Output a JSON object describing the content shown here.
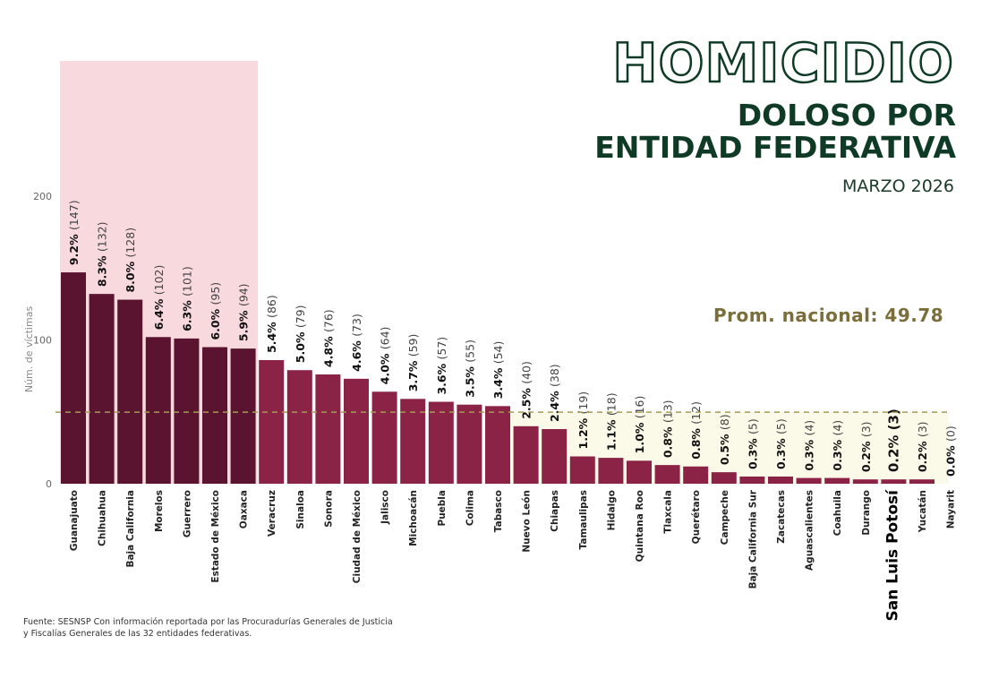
{
  "header": {
    "title_line1": "HOMICIDIO",
    "title_line2": "DOLOSO POR",
    "title_line3": "ENTIDAD FEDERATIVA",
    "period": "MARZO 2026"
  },
  "footer": {
    "source_line1": "Fuente: SESNSP Con información reportada por las  Procuradurías Generales de Justicia",
    "source_line2": "y  Fiscalías Generales de las 32 entidades federativas."
  },
  "chart_data": {
    "type": "bar",
    "title": "HOMICIDIO DOLOSO POR ENTIDAD FEDERATIVA",
    "subtitle": "MARZO 2026",
    "ylabel": "Núm. de víctimas",
    "ylim": [
      0,
      200
    ],
    "yticks": [
      "0",
      "100",
      "200"
    ],
    "grid": false,
    "reference_line": {
      "label": "Prom. nacional: 49.78",
      "value": 49.78,
      "color": "#a59a55"
    },
    "highlight_top_n": 7,
    "highlight_category": "San Luis Potosí",
    "colors": {
      "top": "#5a1430",
      "rest": "#8b2346",
      "highlight_band": "#f8d9de",
      "below_avg_band": "#fbfae8"
    },
    "categories": [
      "Guanajuato",
      "Chihuahua",
      "Baja California",
      "Morelos",
      "Guerrero",
      "Estado de México",
      "Oaxaca",
      "Veracruz",
      "Sinaloa",
      "Sonora",
      "Ciudad de México",
      "Jalisco",
      "Michoacán",
      "Puebla",
      "Colima",
      "Tabasco",
      "Nuevo León",
      "Chiapas",
      "Tamaulipas",
      "Hidalgo",
      "Quintana Roo",
      "Tlaxcala",
      "Querétaro",
      "Campeche",
      "Baja California Sur",
      "Zacatecas",
      "Aguascalientes",
      "Coahuila",
      "Durango",
      "San Luis Potosí",
      "Yucatán",
      "Nayarit"
    ],
    "values": [
      147,
      132,
      128,
      102,
      101,
      95,
      94,
      86,
      79,
      76,
      73,
      64,
      59,
      57,
      55,
      54,
      40,
      38,
      19,
      18,
      16,
      13,
      12,
      8,
      5,
      5,
      4,
      4,
      3,
      3,
      3,
      0
    ],
    "percent_labels": [
      "9.2%",
      "8.3%",
      "8.0%",
      "6.4%",
      "6.3%",
      "6.0%",
      "5.9%",
      "5.4%",
      "5.0%",
      "4.8%",
      "4.6%",
      "4.0%",
      "3.7%",
      "3.6%",
      "3.5%",
      "3.4%",
      "2.5%",
      "2.4%",
      "1.2%",
      "1.1%",
      "1.0%",
      "0.8%",
      "0.8%",
      "0.5%",
      "0.3%",
      "0.3%",
      "0.3%",
      "0.3%",
      "0.2%",
      "0.2%",
      "0.2%",
      "0.0%"
    ]
  }
}
